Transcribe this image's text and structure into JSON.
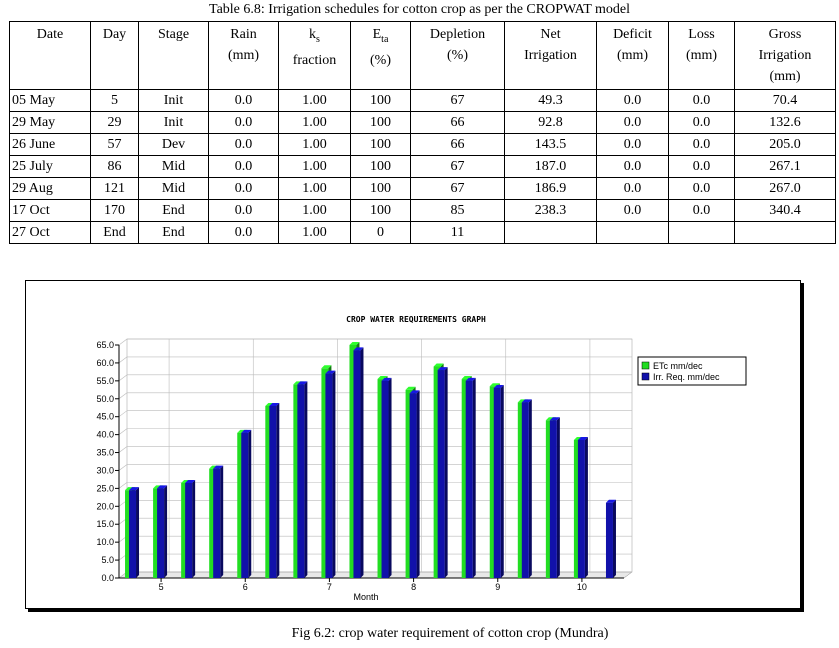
{
  "table": {
    "caption": "Table 6.8: Irrigation schedules for cotton crop as per the CROPWAT model",
    "headers": [
      {
        "l1": "Date",
        "l2": "",
        "l3": ""
      },
      {
        "l1": "Day",
        "l2": "",
        "l3": ""
      },
      {
        "l1": "Stage",
        "l2": "",
        "l3": ""
      },
      {
        "l1": "Rain",
        "l2": "(mm)",
        "l3": ""
      },
      {
        "l1": "k",
        "sub": "s",
        "l2": "fraction",
        "l3": ""
      },
      {
        "l1": "E",
        "sub": "ta",
        "l2": "(%)",
        "l3": ""
      },
      {
        "l1": "Depletion",
        "l2": "(%)",
        "l3": ""
      },
      {
        "l1": "Net",
        "l2": "Irrigation",
        "l3": ""
      },
      {
        "l1": "Deficit",
        "l2": "(mm)",
        "l3": ""
      },
      {
        "l1": "Loss",
        "l2": "(mm)",
        "l3": ""
      },
      {
        "l1": "Gross",
        "l2": "Irrigation",
        "l3": "(mm)"
      }
    ],
    "rows": [
      [
        "05 May",
        "5",
        "Init",
        "0.0",
        "1.00",
        "100",
        "67",
        "49.3",
        "0.0",
        "0.0",
        "70.4"
      ],
      [
        "29 May",
        "29",
        "Init",
        "0.0",
        "1.00",
        "100",
        "66",
        "92.8",
        "0.0",
        "0.0",
        "132.6"
      ],
      [
        "26 June",
        "57",
        "Dev",
        "0.0",
        "1.00",
        "100",
        "66",
        "143.5",
        "0.0",
        "0.0",
        "205.0"
      ],
      [
        "25 July",
        "86",
        "Mid",
        "0.0",
        "1.00",
        "100",
        "67",
        "187.0",
        "0.0",
        "0.0",
        "267.1"
      ],
      [
        "29 Aug",
        "121",
        "Mid",
        "0.0",
        "1.00",
        "100",
        "67",
        "186.9",
        "0.0",
        "0.0",
        "267.0"
      ],
      [
        "17 Oct",
        "170",
        "End",
        "0.0",
        "1.00",
        "100",
        "85",
        "238.3",
        "0.0",
        "0.0",
        "340.4"
      ],
      [
        "27 Oct",
        "End",
        "End",
        "0.0",
        "1.00",
        "0",
        "11",
        "",
        "",
        "",
        ""
      ]
    ]
  },
  "chart_data": {
    "type": "bar",
    "title": "CROP WATER REQUIREMENTS GRAPH",
    "xlabel": "Month",
    "ylabel": "",
    "ylim": [
      0,
      65
    ],
    "y_ticks": [
      "0.0",
      "5.0",
      "10.0",
      "15.0",
      "20.0",
      "25.0",
      "30.0",
      "35.0",
      "40.0",
      "45.0",
      "50.0",
      "55.0",
      "60.0",
      "65.0"
    ],
    "x_ticks": [
      {
        "label": "5",
        "at": 1
      },
      {
        "label": "6",
        "at": 4
      },
      {
        "label": "7",
        "at": 7
      },
      {
        "label": "8",
        "at": 10
      },
      {
        "label": "9",
        "at": 13
      },
      {
        "label": "10",
        "at": 16
      }
    ],
    "grid": true,
    "legend": "top-right",
    "series": [
      {
        "name": "ETc  mm/dec",
        "color": "#22dd22",
        "values": [
          24.5,
          25,
          26.5,
          30.5,
          40.5,
          48,
          54,
          58.5,
          65,
          55.5,
          52.5,
          59,
          55.5,
          53.5,
          49,
          44,
          38.5,
          null
        ]
      },
      {
        "name": "Irr. Req.  mm/dec",
        "color": "#1111aa",
        "values": [
          24.5,
          25,
          26.5,
          30.5,
          40.5,
          48,
          54,
          57,
          63.5,
          55,
          51.5,
          58,
          55,
          53,
          49,
          44,
          38.5,
          21
        ]
      }
    ]
  },
  "figure": {
    "caption": "Fig 6.2: crop water requirement of cotton crop (Mundra)"
  }
}
